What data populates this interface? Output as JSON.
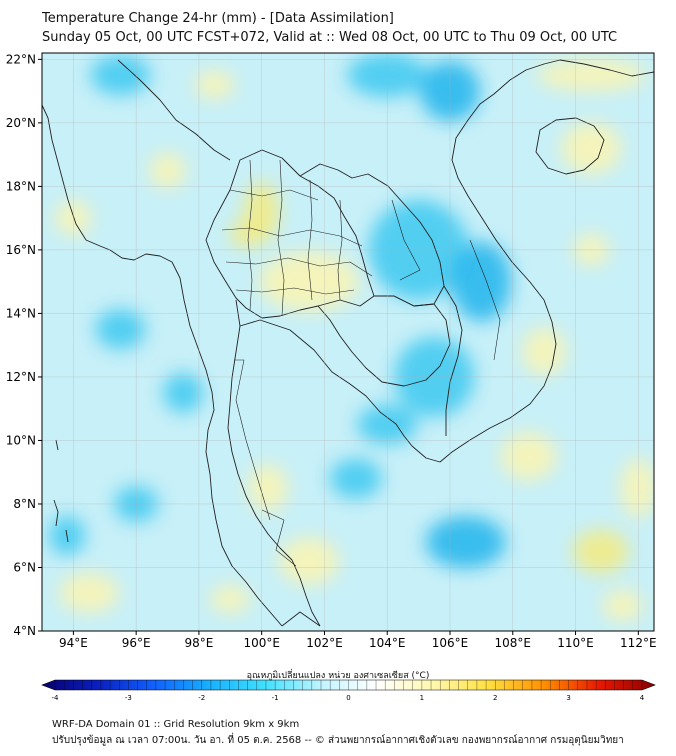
{
  "header": {
    "title": "Temperature Change 24-hr (mm) - [Data Assimilation]",
    "subtitle": "Sunday 05 Oct, 00 UTC FCST+072, Valid at :: Wed 08 Oct, 00 UTC to Thu 09 Oct, 00 UTC"
  },
  "map": {
    "lat_labels": [
      "22°N",
      "20°N",
      "18°N",
      "16°N",
      "14°N",
      "12°N",
      "10°N",
      "8°N",
      "6°N",
      "4°N"
    ],
    "lon_labels": [
      "94°E",
      "96°E",
      "98°E",
      "100°E",
      "102°E",
      "104°E",
      "106°E",
      "108°E",
      "110°E",
      "112°E"
    ],
    "lat_range": [
      4,
      22.2
    ],
    "lon_range": [
      93,
      112.5
    ],
    "colors": {
      "field_base": "#c8f0f8",
      "cool": "#3cc8f0",
      "cooler": "#1eb4ec",
      "warm": "#fbf5b0",
      "warmer": "#f5eb80",
      "border": "#222222",
      "grid": "#b0b0b0"
    }
  },
  "colorbar": {
    "title": "อุณหภูมิเปลี่ยนแปลง หน่วย องศาเซลเซียส (°C)",
    "ticks": [
      "-4",
      "-3",
      "-2",
      "-1",
      "0",
      "1",
      "2",
      "3",
      "4"
    ],
    "range": [
      -4,
      4
    ],
    "stops": [
      "#08006e",
      "#0a1fbf",
      "#1060ff",
      "#18b0ff",
      "#40e0ff",
      "#c0f4ff",
      "#ffffff",
      "#fff8b0",
      "#ffe040",
      "#ff9000",
      "#e81800",
      "#8a0000"
    ]
  },
  "footer": {
    "line1": "WRF-DA Domain 01 :: Grid Resolution 9km x 9km",
    "line2": "ปรับปรุงข้อมูล ณ เวลา 07:00น. วัน อา. ที่ 05 ต.ค. 2568 -- © ส่วนพยากรณ์อากาศเชิงตัวเลข กองพยากรณ์อากาศ กรมอุตุนิยมวิทยา"
  }
}
